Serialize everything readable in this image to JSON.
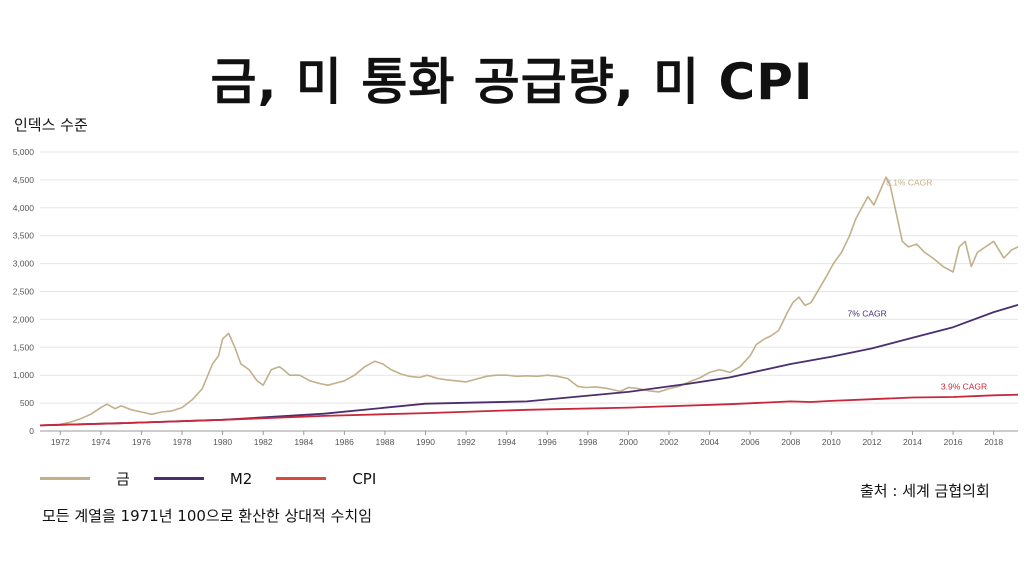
{
  "title": "금, 미 통화 공급량, 미 CPI",
  "source": "출처 : 세계 금협의회",
  "note": "모든 계열을 1971년 100으로 환산한 상대적 수치임",
  "chart_data": {
    "type": "line",
    "ylabel": "인덱스 수준",
    "xlim": [
      1971,
      2019.2
    ],
    "ylim": [
      0,
      5000
    ],
    "yticks": [
      0,
      500,
      1000,
      1500,
      2000,
      2500,
      3000,
      3500,
      4000,
      4500,
      5000
    ],
    "ytick_labels": [
      "0",
      "500",
      "1,000",
      "1,500",
      "2,000",
      "2,500",
      "3,000",
      "3,500",
      "4,000",
      "4,500",
      "5,000"
    ],
    "xticks": [
      1972,
      1974,
      1976,
      1978,
      1980,
      1982,
      1984,
      1986,
      1988,
      1990,
      1992,
      1994,
      1996,
      1998,
      2000,
      2002,
      2004,
      2006,
      2008,
      2010,
      2012,
      2014,
      2016,
      2018
    ],
    "grid": "horizontal",
    "legend_position": "bottom-left",
    "series": [
      {
        "name": "금",
        "color": "#c2b08a",
        "annotation": "8.1% CAGR",
        "annotation_at": [
          2012.7,
          4400
        ],
        "x": [
          1971,
          1972,
          1972.5,
          1973,
          1973.5,
          1974,
          1974.3,
          1974.7,
          1975,
          1975.5,
          1976,
          1976.5,
          1977,
          1977.5,
          1978,
          1978.5,
          1979,
          1979.5,
          1979.8,
          1980,
          1980.3,
          1980.6,
          1980.9,
          1981.3,
          1981.7,
          1982,
          1982.4,
          1982.8,
          1983,
          1983.3,
          1983.8,
          1984.3,
          1984.8,
          1985.2,
          1985.6,
          1986,
          1986.5,
          1987,
          1987.5,
          1987.9,
          1988.3,
          1988.8,
          1989.2,
          1989.7,
          1990.1,
          1990.6,
          1991,
          1991.5,
          1992,
          1992.5,
          1993,
          1993.5,
          1994,
          1994.5,
          1995,
          1995.5,
          1996,
          1996.5,
          1997,
          1997.5,
          1997.9,
          1998.4,
          1999,
          1999.6,
          2000,
          2000.5,
          2001,
          2001.5,
          2002,
          2002.5,
          2003,
          2003.5,
          2004,
          2004.5,
          2005,
          2005.5,
          2006,
          2006.3,
          2006.7,
          2007,
          2007.4,
          2007.8,
          2008.1,
          2008.4,
          2008.7,
          2009,
          2009.4,
          2009.8,
          2010.1,
          2010.5,
          2010.9,
          2011.2,
          2011.5,
          2011.8,
          2012.1,
          2012.4,
          2012.7,
          2012.9,
          2013.2,
          2013.5,
          2013.8,
          2014.2,
          2014.6,
          2015,
          2015.5,
          2016,
          2016.3,
          2016.6,
          2016.9,
          2017.2,
          2017.6,
          2018,
          2018.5,
          2018.9,
          2019.2
        ],
        "y": [
          100,
          120,
          160,
          220,
          300,
          420,
          480,
          400,
          450,
          380,
          340,
          300,
          340,
          360,
          420,
          560,
          760,
          1200,
          1350,
          1650,
          1750,
          1500,
          1200,
          1100,
          900,
          820,
          1100,
          1150,
          1100,
          1000,
          1000,
          900,
          850,
          820,
          860,
          900,
          1000,
          1150,
          1250,
          1200,
          1100,
          1020,
          980,
          960,
          1000,
          940,
          920,
          900,
          880,
          930,
          980,
          1000,
          1000,
          980,
          990,
          980,
          1000,
          980,
          940,
          800,
          780,
          790,
          760,
          710,
          780,
          760,
          720,
          700,
          760,
          800,
          880,
          950,
          1050,
          1100,
          1050,
          1150,
          1350,
          1550,
          1650,
          1700,
          1800,
          2100,
          2300,
          2400,
          2250,
          2300,
          2550,
          2800,
          3000,
          3200,
          3500,
          3800,
          4000,
          4200,
          4050,
          4300,
          4550,
          4400,
          3900,
          3400,
          3300,
          3350,
          3200,
          3100,
          2950,
          2850,
          3300,
          3400,
          2950,
          3200,
          3300,
          3400,
          3100,
          3250,
          3300
        ]
      },
      {
        "name": "M2",
        "color": "#4b2e6e",
        "annotation": "7% CAGR",
        "annotation_at": [
          2010.8,
          2050
        ],
        "x": [
          1971,
          1975,
          1980,
          1985,
          1990,
          1995,
          2000,
          2003,
          2005,
          2008,
          2010,
          2012,
          2014,
          2016,
          2018,
          2019.2
        ],
        "y": [
          100,
          140,
          200,
          310,
          490,
          530,
          700,
          850,
          960,
          1200,
          1330,
          1480,
          1670,
          1860,
          2130,
          2260
        ]
      },
      {
        "name": "CPI",
        "color": "#c8283c",
        "annotation": "3.9% CAGR",
        "annotation_at": [
          2015.4,
          740
        ],
        "x": [
          1971,
          1975,
          1980,
          1985,
          1990,
          1995,
          2000,
          2005,
          2008,
          2009,
          2010,
          2012,
          2014,
          2016,
          2018,
          2019.2
        ],
        "y": [
          100,
          140,
          200,
          270,
          320,
          380,
          420,
          480,
          530,
          520,
          540,
          570,
          600,
          610,
          640,
          650
        ]
      }
    ]
  }
}
